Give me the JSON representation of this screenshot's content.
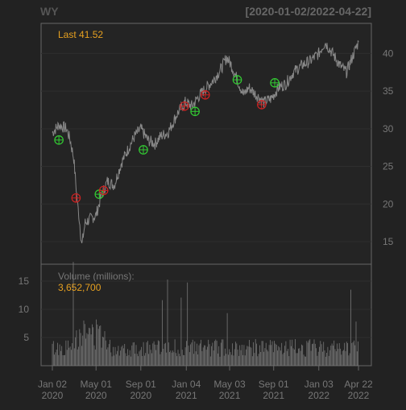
{
  "chart_data": {
    "type": "line",
    "title": "WY",
    "date_range": "[2020-01-02/2022-04-22]",
    "last_label": "Last 41.52",
    "price_panel": {
      "ylim": [
        12,
        44
      ],
      "y_ticks": [
        15,
        20,
        25,
        30,
        35,
        40
      ],
      "grid": true,
      "price_series": {
        "x": [
          "2020-01-02",
          "2020-01-20",
          "2020-02-10",
          "2020-02-20",
          "2020-03-01",
          "2020-03-10",
          "2020-03-16",
          "2020-03-23",
          "2020-04-01",
          "2020-04-15",
          "2020-05-01",
          "2020-05-15",
          "2020-06-01",
          "2020-06-20",
          "2020-07-10",
          "2020-07-25",
          "2020-08-15",
          "2020-09-01",
          "2020-09-20",
          "2020-10-10",
          "2020-10-25",
          "2020-11-15",
          "2020-12-10",
          "2021-01-01",
          "2021-01-20",
          "2021-02-10",
          "2021-03-01",
          "2021-03-20",
          "2021-04-10",
          "2021-04-25",
          "2021-05-07",
          "2021-05-20",
          "2021-06-10",
          "2021-06-25",
          "2021-07-15",
          "2021-08-05",
          "2021-08-25",
          "2021-09-15",
          "2021-10-05",
          "2021-10-25",
          "2021-11-20",
          "2021-12-10",
          "2022-01-03",
          "2022-01-20",
          "2022-02-10",
          "2022-03-01",
          "2022-03-20",
          "2022-04-05",
          "2022-04-22"
        ],
        "y": [
          29.5,
          30.5,
          30.0,
          28.5,
          26.0,
          20.5,
          18.0,
          14.5,
          17.5,
          18.0,
          18.5,
          21.0,
          23.0,
          22.5,
          25.5,
          27.0,
          29.0,
          30.0,
          28.5,
          28.0,
          29.0,
          29.5,
          32.0,
          33.5,
          33.0,
          34.5,
          35.5,
          36.5,
          38.0,
          39.5,
          38.5,
          37.0,
          34.5,
          35.5,
          34.5,
          33.5,
          34.0,
          35.5,
          36.0,
          37.5,
          38.5,
          39.0,
          40.0,
          41.5,
          40.0,
          38.5,
          37.5,
          39.5,
          41.52
        ]
      },
      "signals": [
        {
          "date": "2020-01-20",
          "price": 28.5,
          "type": "buy"
        },
        {
          "date": "2020-03-07",
          "price": 20.8,
          "type": "sell"
        },
        {
          "date": "2020-05-10",
          "price": 21.3,
          "type": "buy"
        },
        {
          "date": "2020-05-22",
          "price": 21.8,
          "type": "sell"
        },
        {
          "date": "2020-09-08",
          "price": 27.2,
          "type": "buy"
        },
        {
          "date": "2020-12-30",
          "price": 33.0,
          "type": "sell"
        },
        {
          "date": "2021-01-28",
          "price": 32.3,
          "type": "buy"
        },
        {
          "date": "2021-02-25",
          "price": 34.5,
          "type": "sell"
        },
        {
          "date": "2021-05-24",
          "price": 36.5,
          "type": "buy"
        },
        {
          "date": "2021-07-30",
          "price": 33.2,
          "type": "sell"
        },
        {
          "date": "2021-09-04",
          "price": 36.1,
          "type": "buy"
        }
      ],
      "colors": {
        "buy": "#33CC33",
        "sell": "#CC2222",
        "price": "#888888",
        "last": "#E6A020"
      }
    },
    "volume_panel": {
      "label": "Volume (millions):",
      "last_value": "3,652,700",
      "ylim": [
        0,
        18
      ],
      "y_ticks": [
        5,
        10,
        15
      ],
      "approx_level_millions": 3.5
    },
    "x_axis": {
      "ticks": [
        {
          "date": "2020-01-02",
          "line1": "Jan 02",
          "line2": "2020"
        },
        {
          "date": "2020-05-01",
          "line1": "May 01",
          "line2": "2020"
        },
        {
          "date": "2020-09-01",
          "line1": "Sep 01",
          "line2": "2020"
        },
        {
          "date": "2021-01-04",
          "line1": "Jan 04",
          "line2": "2021"
        },
        {
          "date": "2021-05-03",
          "line1": "May 03",
          "line2": "2021"
        },
        {
          "date": "2021-09-01",
          "line1": "Sep 01",
          "line2": "2021"
        },
        {
          "date": "2022-01-03",
          "line1": "Jan 03",
          "line2": "2022"
        },
        {
          "date": "2022-04-22",
          "line1": "Apr 22",
          "line2": "2022"
        }
      ]
    }
  }
}
